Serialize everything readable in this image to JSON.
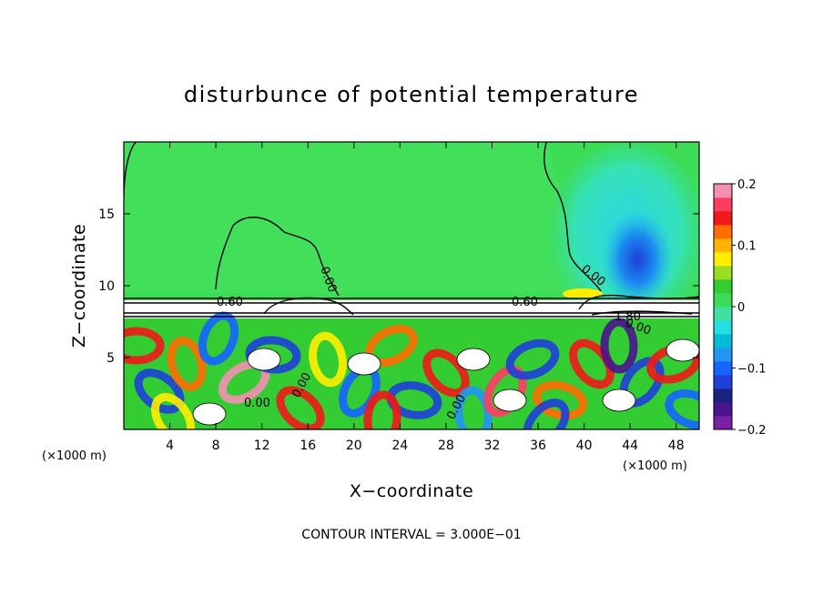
{
  "chart_data": {
    "type": "heatmap",
    "title": "disturbunce of potential temperature",
    "xlabel": "X−coordinate",
    "ylabel": "Z−coordinate",
    "x_unit_label": "(×1000 m)",
    "z_unit_label": "(×1000 m)",
    "xlim": [
      0,
      50
    ],
    "ylim": [
      0,
      20
    ],
    "x_ticks": [
      "4",
      "8",
      "12",
      "16",
      "20",
      "24",
      "28",
      "32",
      "36",
      "40",
      "44",
      "48"
    ],
    "x_tick_values": [
      4,
      8,
      12,
      16,
      20,
      24,
      28,
      32,
      36,
      40,
      44,
      48
    ],
    "y_ticks": [
      "5",
      "10",
      "15"
    ],
    "y_tick_values": [
      5,
      10,
      15
    ],
    "colorbar": {
      "min": -0.2,
      "max": 0.2,
      "tick_labels": [
        "0.2",
        "0.1",
        "0",
        "−0.1",
        "−0.2"
      ],
      "tick_values": [
        0.2,
        0.1,
        0,
        -0.1,
        -0.2
      ],
      "colors": [
        "#7b1fa2",
        "#4a148c",
        "#1a237e",
        "#1e3fd8",
        "#1565ff",
        "#2196f3",
        "#00bcd4",
        "#26e0e0",
        "#40e0a0",
        "#3ddc56",
        "#33cc33",
        "#99dd22",
        "#ffee00",
        "#ffb300",
        "#ff6d00",
        "#f01818",
        "#ff3d60",
        "#f48fb1"
      ]
    },
    "contour_labels": [
      "0.00",
      "0.00",
      "0.60",
      "0.60",
      "0.00",
      "−1.80",
      "0.00",
      "0.00",
      "0.00"
    ],
    "contour_interval_label": "CONTOUR INTERVAL = 3.000E−01",
    "upper_field": {
      "description_values": [
        {
          "x": 44,
          "z": 12,
          "value": -0.15
        },
        {
          "x": 44,
          "z": 15,
          "value": -0.05
        },
        {
          "x": 10,
          "z": 13,
          "value": 0.02
        },
        {
          "x": 25,
          "z": 16,
          "value": 0.01
        }
      ]
    }
  }
}
